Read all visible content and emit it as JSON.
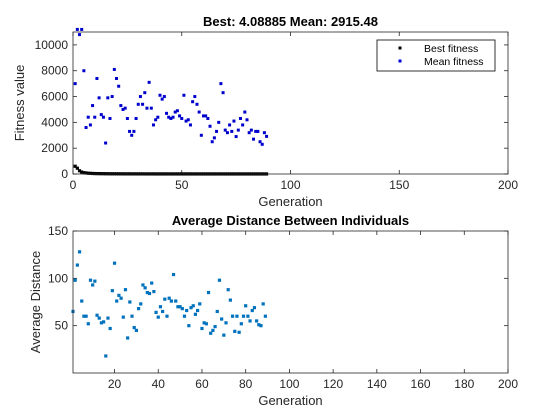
{
  "colors": {
    "best": "#000000",
    "mean": "#0000cc",
    "distance": "#0072bd",
    "axis": "#262626"
  },
  "chart_data": [
    {
      "type": "scatter",
      "title": "Best: 4.08885 Mean: 2915.48",
      "xlabel": "Generation",
      "ylabel": "Fitness value",
      "xlim": [
        0,
        200
      ],
      "ylim": [
        0,
        11000
      ],
      "xticks": [
        "0",
        "50",
        "100",
        "150",
        "200"
      ],
      "yticks": [
        "0",
        "2000",
        "4000",
        "6000",
        "8000",
        "10000"
      ],
      "xtick_values": [
        0,
        50,
        100,
        150,
        200
      ],
      "ytick_values": [
        0,
        2000,
        4000,
        6000,
        8000,
        10000
      ],
      "grid": false,
      "legend_position": "top-right",
      "series": [
        {
          "name": "Best fitness",
          "color": "#000000",
          "x": [
            1,
            2,
            3,
            4,
            5,
            6,
            7,
            8,
            9,
            10,
            11,
            12,
            13,
            14,
            15,
            16,
            17,
            18,
            19,
            20,
            21,
            22,
            23,
            24,
            25,
            26,
            27,
            28,
            29,
            30,
            31,
            32,
            33,
            34,
            35,
            36,
            37,
            38,
            39,
            40,
            41,
            42,
            43,
            44,
            45,
            46,
            47,
            48,
            49,
            50,
            51,
            52,
            53,
            54,
            55,
            56,
            57,
            58,
            59,
            60,
            61,
            62,
            63,
            64,
            65,
            66,
            67,
            68,
            69,
            70,
            71,
            72,
            73,
            74,
            75,
            76,
            77,
            78,
            79,
            80,
            81,
            82,
            83,
            84,
            85,
            86,
            87,
            88,
            89
          ],
          "y": [
            600,
            450,
            250,
            150,
            100,
            80,
            60,
            50,
            40,
            35,
            30,
            28,
            25,
            22,
            20,
            18,
            16,
            15,
            14,
            13,
            12,
            11,
            10,
            10,
            9,
            9,
            8,
            8,
            8,
            7,
            7,
            7,
            6,
            6,
            6,
            6,
            6,
            5,
            5,
            5,
            5,
            5,
            5,
            5,
            5,
            5,
            5,
            5,
            5,
            5,
            5,
            5,
            5,
            5,
            4.5,
            4.5,
            4.5,
            4.5,
            4.5,
            4.5,
            4.5,
            4.5,
            4.5,
            4.5,
            4.5,
            4.5,
            4.5,
            4.5,
            4.5,
            4.1,
            4.1,
            4.1,
            4.1,
            4.1,
            4.1,
            4.1,
            4.1,
            4.1,
            4.1,
            4.1,
            4.1,
            4.1,
            4.1,
            4.1,
            4.1,
            4.1,
            4.1,
            4.1,
            4.08885
          ]
        },
        {
          "name": "Mean fitness",
          "color": "#0000cc",
          "x": [
            1,
            2,
            3,
            4,
            5,
            6,
            7,
            8,
            9,
            10,
            11,
            12,
            13,
            14,
            15,
            16,
            17,
            18,
            19,
            20,
            21,
            22,
            23,
            24,
            25,
            26,
            27,
            28,
            29,
            30,
            31,
            32,
            33,
            34,
            35,
            36,
            37,
            38,
            39,
            40,
            41,
            42,
            43,
            44,
            45,
            46,
            47,
            48,
            49,
            50,
            51,
            52,
            53,
            54,
            55,
            56,
            57,
            58,
            59,
            60,
            61,
            62,
            63,
            64,
            65,
            66,
            67,
            68,
            69,
            70,
            71,
            72,
            73,
            74,
            75,
            76,
            77,
            78,
            79,
            80,
            81,
            82,
            83,
            84,
            85,
            86,
            87,
            88,
            89
          ],
          "y": [
            7000,
            11200,
            10800,
            11200,
            8000,
            3600,
            4400,
            3800,
            5300,
            4400,
            7400,
            5900,
            4600,
            4400,
            2400,
            5900,
            4300,
            6000,
            8100,
            7400,
            6800,
            5300,
            5000,
            5100,
            4300,
            3300,
            3000,
            3300,
            4300,
            5400,
            6000,
            5400,
            6300,
            5100,
            7100,
            5100,
            3800,
            4200,
            4400,
            6100,
            5800,
            6000,
            4700,
            4400,
            4300,
            4400,
            4800,
            4900,
            4500,
            4300,
            6100,
            4100,
            4200,
            3800,
            5600,
            6000,
            5400,
            4800,
            3000,
            4500,
            4500,
            4300,
            3700,
            2500,
            2800,
            3300,
            4000,
            7000,
            6300,
            3400,
            3200,
            3800,
            3300,
            4100,
            2900,
            3400,
            4300,
            3800,
            4800,
            4200,
            3200,
            3400,
            2700,
            3300,
            3300,
            2500,
            2300,
            3200,
            2915
          ]
        }
      ]
    },
    {
      "type": "scatter",
      "title": "Average Distance Between Individuals",
      "xlabel": "Generation",
      "ylabel": "Average Distance",
      "xlim": [
        1,
        200
      ],
      "ylim": [
        0,
        150
      ],
      "xticks": [
        "20",
        "40",
        "60",
        "80",
        "100",
        "120",
        "140",
        "160",
        "180",
        "200"
      ],
      "yticks": [
        "50",
        "100",
        "150"
      ],
      "xtick_values": [
        20,
        40,
        60,
        80,
        100,
        120,
        140,
        160,
        180,
        200
      ],
      "ytick_values": [
        50,
        100,
        150
      ],
      "grid": false,
      "series": [
        {
          "color": "#0072bd",
          "x": [
            1,
            2,
            3,
            4,
            5,
            6,
            7,
            8,
            9,
            10,
            11,
            12,
            13,
            14,
            15,
            16,
            17,
            18,
            19,
            20,
            21,
            22,
            23,
            24,
            25,
            26,
            27,
            28,
            29,
            30,
            31,
            32,
            33,
            34,
            35,
            36,
            37,
            38,
            39,
            40,
            41,
            42,
            43,
            44,
            45,
            46,
            47,
            48,
            49,
            50,
            51,
            52,
            53,
            54,
            55,
            56,
            57,
            58,
            59,
            60,
            61,
            62,
            63,
            64,
            65,
            66,
            67,
            68,
            69,
            70,
            71,
            72,
            73,
            74,
            75,
            76,
            77,
            78,
            79,
            80,
            81,
            82,
            83,
            84,
            85,
            86,
            87,
            88,
            89
          ],
          "y": [
            65,
            98,
            114,
            128,
            76,
            60,
            60,
            52,
            98,
            93,
            97,
            61,
            58,
            53,
            54,
            18,
            58,
            47,
            87,
            116,
            76,
            82,
            79,
            59,
            88,
            37,
            75,
            60,
            48,
            45,
            68,
            73,
            93,
            90,
            85,
            84,
            95,
            86,
            64,
            59,
            70,
            65,
            78,
            60,
            79,
            76,
            104,
            76,
            70,
            70,
            68,
            60,
            66,
            50,
            69,
            71,
            62,
            66,
            73,
            47,
            53,
            52,
            85,
            42,
            45,
            49,
            65,
            98,
            57,
            40,
            53,
            88,
            77,
            60,
            44,
            60,
            43,
            52,
            60,
            71,
            60,
            55,
            66,
            69,
            55,
            51,
            50,
            73,
            60
          ]
        }
      ]
    }
  ]
}
